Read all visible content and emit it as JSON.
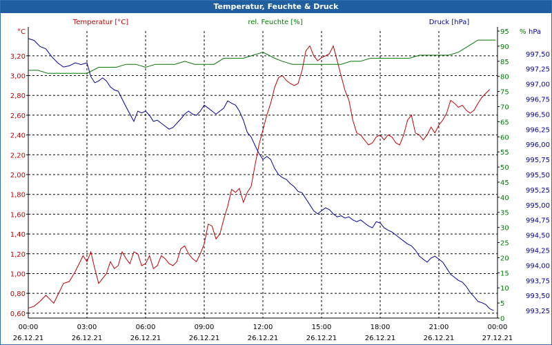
{
  "window": {
    "title": "Temperatur, Feuchte & Druck"
  },
  "colors": {
    "titlebar": "#1f5f9f",
    "temperature": "#c00000",
    "humidity": "#007700",
    "pressure": "#00009a",
    "grid": "#000000",
    "axis": "#000000"
  },
  "chart_data": {
    "type": "line",
    "title": "Temperatur, Feuchte & Druck",
    "grid": true,
    "x_ticks": [
      {
        "time": "00:00",
        "date": "26.12.21"
      },
      {
        "time": "03:00",
        "date": "26.12.21"
      },
      {
        "time": "06:00",
        "date": "26.12.21"
      },
      {
        "time": "09:00",
        "date": "26.12.21"
      },
      {
        "time": "12:00",
        "date": "26.12.21"
      },
      {
        "time": "15:00",
        "date": "26.12.21"
      },
      {
        "time": "18:00",
        "date": "26.12.21"
      },
      {
        "time": "21:00",
        "date": "26.12.21"
      },
      {
        "time": "00:00",
        "date": "27.12.21"
      }
    ],
    "x_hours": [
      0,
      24
    ],
    "axes": {
      "left": {
        "label": "Temperatur [°C]",
        "unit": "°C",
        "range": [
          0.55,
          3.45
        ],
        "ticks": [
          "0,60",
          "0,80",
          "1,00",
          "1,20",
          "1,40",
          "1,60",
          "1,80",
          "2,00",
          "2,20",
          "2,40",
          "2,60",
          "2,80",
          "3,00",
          "3,20"
        ]
      },
      "middle": {
        "label": "rel. Feuchte [%]",
        "unit": "%",
        "range": [
          0,
          95
        ],
        "ticks": [
          "0",
          "5",
          "10",
          "15",
          "20",
          "25",
          "30",
          "35",
          "40",
          "45",
          "50",
          "55",
          "60",
          "65",
          "70",
          "75",
          "80",
          "85",
          "90",
          "95"
        ]
      },
      "right": {
        "label": "Druck [hPa]",
        "unit": "hPa",
        "range": [
          993.125,
          997.875
        ],
        "ticks": [
          "993,25",
          "993,50",
          "993,75",
          "994,00",
          "994,25",
          "994,50",
          "994,75",
          "995,00",
          "995,25",
          "995,50",
          "995,75",
          "996,00",
          "996,25",
          "996,50",
          "996,75",
          "997,00",
          "997,25",
          "997,50"
        ]
      }
    },
    "series": [
      {
        "name": "Temperatur [°C]",
        "axis": "left",
        "points": [
          [
            0,
            0.65
          ],
          [
            0.3,
            0.67
          ],
          [
            0.6,
            0.72
          ],
          [
            0.9,
            0.78
          ],
          [
            1.1,
            0.74
          ],
          [
            1.3,
            0.7
          ],
          [
            1.5,
            0.78
          ],
          [
            1.8,
            0.9
          ],
          [
            2.1,
            0.92
          ],
          [
            2.4,
            1.02
          ],
          [
            2.6,
            1.1
          ],
          [
            2.8,
            1.18
          ],
          [
            3.0,
            1.12
          ],
          [
            3.2,
            1.22
          ],
          [
            3.4,
            1.05
          ],
          [
            3.6,
            0.9
          ],
          [
            3.8,
            0.95
          ],
          [
            4.0,
            1.0
          ],
          [
            4.2,
            1.12
          ],
          [
            4.4,
            1.05
          ],
          [
            4.6,
            1.08
          ],
          [
            4.8,
            1.22
          ],
          [
            5.0,
            1.15
          ],
          [
            5.2,
            1.1
          ],
          [
            5.4,
            1.22
          ],
          [
            5.6,
            1.2
          ],
          [
            5.8,
            1.08
          ],
          [
            6.0,
            1.1
          ],
          [
            6.2,
            1.18
          ],
          [
            6.4,
            1.05
          ],
          [
            6.6,
            1.08
          ],
          [
            6.8,
            1.18
          ],
          [
            7.0,
            1.15
          ],
          [
            7.2,
            1.1
          ],
          [
            7.4,
            1.08
          ],
          [
            7.6,
            1.12
          ],
          [
            7.8,
            1.25
          ],
          [
            8.0,
            1.28
          ],
          [
            8.2,
            1.2
          ],
          [
            8.4,
            1.15
          ],
          [
            8.6,
            1.12
          ],
          [
            8.8,
            1.2
          ],
          [
            9.0,
            1.3
          ],
          [
            9.2,
            1.5
          ],
          [
            9.4,
            1.48
          ],
          [
            9.6,
            1.35
          ],
          [
            9.8,
            1.4
          ],
          [
            10.0,
            1.55
          ],
          [
            10.2,
            1.68
          ],
          [
            10.4,
            1.85
          ],
          [
            10.6,
            1.82
          ],
          [
            10.8,
            1.86
          ],
          [
            11.0,
            1.72
          ],
          [
            11.2,
            1.82
          ],
          [
            11.4,
            1.88
          ],
          [
            11.6,
            2.1
          ],
          [
            11.8,
            2.3
          ],
          [
            12.0,
            2.45
          ],
          [
            12.2,
            2.6
          ],
          [
            12.4,
            2.72
          ],
          [
            12.6,
            2.88
          ],
          [
            12.8,
            2.98
          ],
          [
            13.0,
            3.0
          ],
          [
            13.2,
            2.95
          ],
          [
            13.4,
            2.92
          ],
          [
            13.6,
            2.9
          ],
          [
            13.8,
            2.92
          ],
          [
            14.0,
            3.05
          ],
          [
            14.2,
            3.25
          ],
          [
            14.4,
            3.3
          ],
          [
            14.6,
            3.2
          ],
          [
            14.8,
            3.15
          ],
          [
            15.0,
            3.18
          ],
          [
            15.2,
            3.2
          ],
          [
            15.4,
            3.22
          ],
          [
            15.6,
            3.3
          ],
          [
            15.8,
            3.15
          ],
          [
            16.0,
            3.0
          ],
          [
            16.2,
            2.85
          ],
          [
            16.4,
            2.75
          ],
          [
            16.6,
            2.55
          ],
          [
            16.8,
            2.42
          ],
          [
            17.0,
            2.4
          ],
          [
            17.2,
            2.35
          ],
          [
            17.4,
            2.3
          ],
          [
            17.6,
            2.32
          ],
          [
            17.8,
            2.38
          ],
          [
            18.0,
            2.4
          ],
          [
            18.2,
            2.35
          ],
          [
            18.4,
            2.4
          ],
          [
            18.6,
            2.38
          ],
          [
            18.8,
            2.32
          ],
          [
            19.0,
            2.3
          ],
          [
            19.2,
            2.4
          ],
          [
            19.4,
            2.55
          ],
          [
            19.6,
            2.6
          ],
          [
            19.8,
            2.42
          ],
          [
            20.0,
            2.4
          ],
          [
            20.2,
            2.35
          ],
          [
            20.4,
            2.4
          ],
          [
            20.6,
            2.48
          ],
          [
            20.8,
            2.42
          ],
          [
            21.0,
            2.5
          ],
          [
            21.2,
            2.55
          ],
          [
            21.4,
            2.62
          ],
          [
            21.6,
            2.75
          ],
          [
            21.8,
            2.72
          ],
          [
            22.0,
            2.68
          ],
          [
            22.2,
            2.7
          ],
          [
            22.4,
            2.65
          ],
          [
            22.6,
            2.62
          ],
          [
            22.8,
            2.65
          ],
          [
            23.0,
            2.72
          ],
          [
            23.2,
            2.78
          ],
          [
            23.4,
            2.82
          ],
          [
            23.6,
            2.86
          ]
        ]
      },
      {
        "name": "rel. Feuchte [%]",
        "axis": "middle",
        "points": [
          [
            0,
            82
          ],
          [
            0.5,
            82
          ],
          [
            1.0,
            81
          ],
          [
            1.5,
            81
          ],
          [
            2.0,
            81
          ],
          [
            2.5,
            81
          ],
          [
            3.0,
            81
          ],
          [
            3.3,
            82
          ],
          [
            3.6,
            83
          ],
          [
            4.0,
            83
          ],
          [
            4.5,
            83
          ],
          [
            5.0,
            84
          ],
          [
            5.5,
            84
          ],
          [
            6.0,
            83
          ],
          [
            6.5,
            84
          ],
          [
            7.0,
            84
          ],
          [
            7.5,
            84
          ],
          [
            8.0,
            85
          ],
          [
            8.5,
            84
          ],
          [
            9.0,
            84
          ],
          [
            9.5,
            84
          ],
          [
            10.0,
            86
          ],
          [
            10.5,
            86
          ],
          [
            11.0,
            86
          ],
          [
            11.5,
            87
          ],
          [
            12.0,
            88
          ],
          [
            12.3,
            87
          ],
          [
            12.6,
            86
          ],
          [
            13.0,
            85
          ],
          [
            13.5,
            84
          ],
          [
            14.0,
            84
          ],
          [
            14.5,
            84
          ],
          [
            15.0,
            84
          ],
          [
            15.5,
            84
          ],
          [
            16.0,
            84
          ],
          [
            16.5,
            85
          ],
          [
            17.0,
            85
          ],
          [
            17.5,
            86
          ],
          [
            18.0,
            86
          ],
          [
            18.5,
            86
          ],
          [
            19.0,
            86
          ],
          [
            19.5,
            86
          ],
          [
            20.0,
            87
          ],
          [
            20.5,
            87
          ],
          [
            21.0,
            87
          ],
          [
            21.5,
            87
          ],
          [
            22.0,
            88
          ],
          [
            22.5,
            90
          ],
          [
            23.0,
            92
          ],
          [
            23.5,
            92
          ],
          [
            23.9,
            92
          ]
        ]
      },
      {
        "name": "Druck [hPa]",
        "axis": "right",
        "points": [
          [
            0,
            997.75
          ],
          [
            0.3,
            997.72
          ],
          [
            0.6,
            997.62
          ],
          [
            0.9,
            997.58
          ],
          [
            1.2,
            997.45
          ],
          [
            1.5,
            997.35
          ],
          [
            1.8,
            997.28
          ],
          [
            2.1,
            997.3
          ],
          [
            2.4,
            997.35
          ],
          [
            2.7,
            997.32
          ],
          [
            3.0,
            997.35
          ],
          [
            3.2,
            997.12
          ],
          [
            3.4,
            997.02
          ],
          [
            3.6,
            997.05
          ],
          [
            3.8,
            997.1
          ],
          [
            4.0,
            997.05
          ],
          [
            4.2,
            996.95
          ],
          [
            4.4,
            996.9
          ],
          [
            4.6,
            996.88
          ],
          [
            4.8,
            996.75
          ],
          [
            5.0,
            996.62
          ],
          [
            5.2,
            996.5
          ],
          [
            5.4,
            996.38
          ],
          [
            5.6,
            996.55
          ],
          [
            5.8,
            996.52
          ],
          [
            6.0,
            996.55
          ],
          [
            6.2,
            996.48
          ],
          [
            6.4,
            996.38
          ],
          [
            6.6,
            996.4
          ],
          [
            6.8,
            996.35
          ],
          [
            7.0,
            996.3
          ],
          [
            7.2,
            996.25
          ],
          [
            7.4,
            996.28
          ],
          [
            7.6,
            996.35
          ],
          [
            7.8,
            996.42
          ],
          [
            8.0,
            996.5
          ],
          [
            8.2,
            996.55
          ],
          [
            8.4,
            996.5
          ],
          [
            8.6,
            996.48
          ],
          [
            8.8,
            996.55
          ],
          [
            9.0,
            996.65
          ],
          [
            9.2,
            996.6
          ],
          [
            9.4,
            996.55
          ],
          [
            9.6,
            996.5
          ],
          [
            9.8,
            996.55
          ],
          [
            10.0,
            996.6
          ],
          [
            10.2,
            996.72
          ],
          [
            10.4,
            996.68
          ],
          [
            10.6,
            996.65
          ],
          [
            10.8,
            996.55
          ],
          [
            11.0,
            996.4
          ],
          [
            11.2,
            996.2
          ],
          [
            11.4,
            996.12
          ],
          [
            11.6,
            995.98
          ],
          [
            11.8,
            995.85
          ],
          [
            12.0,
            995.75
          ],
          [
            12.2,
            995.8
          ],
          [
            12.4,
            995.75
          ],
          [
            12.6,
            995.6
          ],
          [
            12.8,
            995.5
          ],
          [
            13.0,
            995.45
          ],
          [
            13.2,
            995.42
          ],
          [
            13.4,
            995.35
          ],
          [
            13.6,
            995.3
          ],
          [
            13.8,
            995.22
          ],
          [
            14.0,
            995.2
          ],
          [
            14.2,
            995.1
          ],
          [
            14.4,
            995.0
          ],
          [
            14.6,
            994.9
          ],
          [
            14.8,
            994.85
          ],
          [
            15.0,
            994.9
          ],
          [
            15.2,
            994.95
          ],
          [
            15.4,
            994.92
          ],
          [
            15.6,
            994.85
          ],
          [
            15.8,
            994.8
          ],
          [
            16.0,
            994.82
          ],
          [
            16.2,
            994.78
          ],
          [
            16.4,
            994.8
          ],
          [
            16.6,
            994.75
          ],
          [
            16.8,
            994.72
          ],
          [
            17.0,
            994.75
          ],
          [
            17.2,
            994.7
          ],
          [
            17.4,
            994.65
          ],
          [
            17.6,
            994.62
          ],
          [
            17.8,
            994.72
          ],
          [
            18.0,
            994.7
          ],
          [
            18.2,
            994.62
          ],
          [
            18.4,
            994.58
          ],
          [
            18.6,
            994.55
          ],
          [
            18.8,
            994.5
          ],
          [
            19.0,
            994.45
          ],
          [
            19.2,
            994.4
          ],
          [
            19.4,
            994.35
          ],
          [
            19.6,
            994.32
          ],
          [
            19.8,
            994.25
          ],
          [
            20.0,
            994.15
          ],
          [
            20.2,
            994.1
          ],
          [
            20.4,
            994.05
          ],
          [
            20.6,
            994.12
          ],
          [
            20.8,
            994.15
          ],
          [
            21.0,
            994.1
          ],
          [
            21.2,
            994.05
          ],
          [
            21.4,
            993.95
          ],
          [
            21.6,
            993.85
          ],
          [
            21.8,
            993.8
          ],
          [
            22.0,
            993.75
          ],
          [
            22.2,
            993.72
          ],
          [
            22.4,
            993.65
          ],
          [
            22.6,
            993.55
          ],
          [
            22.8,
            993.48
          ],
          [
            23.0,
            993.4
          ],
          [
            23.2,
            993.38
          ],
          [
            23.4,
            993.35
          ],
          [
            23.6,
            993.28
          ],
          [
            23.8,
            993.25
          ]
        ]
      }
    ]
  }
}
